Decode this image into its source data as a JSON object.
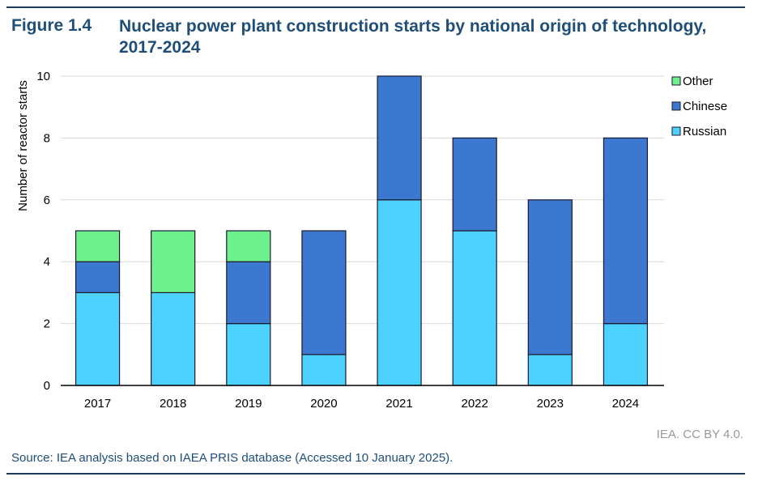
{
  "figure": {
    "number": "Figure 1.4",
    "title": "Nuclear power plant construction starts by national origin of technology, 2017-2024"
  },
  "credit": "IEA. CC BY 4.0.",
  "source": "Source: IEA analysis based on IAEA PRIS database (Accessed 10 January 2025).",
  "chart_data": {
    "type": "bar",
    "stacked": true,
    "title": "Nuclear power plant construction starts by national origin of technology, 2017-2024",
    "xlabel": "",
    "ylabel": "Number of reactor starts",
    "categories": [
      "2017",
      "2018",
      "2019",
      "2020",
      "2021",
      "2022",
      "2023",
      "2024"
    ],
    "series": [
      {
        "name": "Russian",
        "color": "#4dd2ff",
        "values": [
          3,
          3,
          2,
          1,
          6,
          5,
          1,
          2
        ]
      },
      {
        "name": "Chinese",
        "color": "#3c78d0",
        "values": [
          1,
          0,
          2,
          4,
          4,
          3,
          5,
          6
        ]
      },
      {
        "name": "Other",
        "color": "#6ef08c",
        "values": [
          1,
          2,
          1,
          0,
          0,
          0,
          0,
          0
        ]
      }
    ],
    "ylim": [
      0,
      10
    ],
    "yticks": [
      0,
      2,
      4,
      6,
      8,
      10
    ],
    "grid": true,
    "legend_position": "top-right",
    "legend_order": [
      "Other",
      "Chinese",
      "Russian"
    ]
  }
}
